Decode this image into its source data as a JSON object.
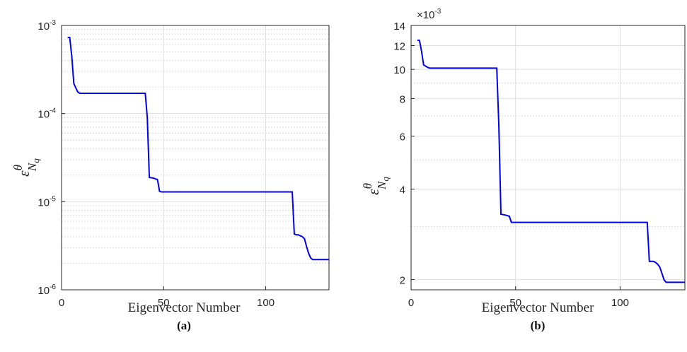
{
  "chart_data": [
    {
      "type": "line",
      "panel_label": "(a)",
      "xlabel": "Eigenvector Number",
      "ylabel": {
        "base": "ε",
        "sup": "θ",
        "sub": "N",
        "subsub": "q"
      },
      "yscale": "log",
      "xlim": [
        0,
        131
      ],
      "ylim": [
        1e-06,
        0.001
      ],
      "x_ticks": [
        "0",
        "50",
        "100"
      ],
      "y_ticks": [
        {
          "base": "10",
          "exp": "-6"
        },
        {
          "base": "10",
          "exp": "-5"
        },
        {
          "base": "10",
          "exp": "-4"
        },
        {
          "base": "10",
          "exp": "-3"
        }
      ],
      "grid": true,
      "color": "#0000ee",
      "series": [
        {
          "x": [
            3,
            4,
            5,
            6,
            7,
            8,
            9,
            10,
            41,
            42,
            43,
            45,
            47,
            48,
            49,
            113,
            114,
            115,
            116,
            117,
            118,
            119,
            120,
            121,
            122,
            123,
            124,
            125,
            131
          ],
          "y": [
            0.00073,
            0.00073,
            0.00045,
            0.00022,
            0.000195,
            0.000175,
            0.00017,
            0.00017,
            0.00017,
            9e-05,
            1.88e-05,
            1.85e-05,
            1.78e-05,
            1.31e-05,
            1.29e-05,
            1.29e-05,
            4.3e-06,
            4.2e-06,
            4.2e-06,
            4.1e-06,
            4e-06,
            3.8e-06,
            3.1e-06,
            2.6e-06,
            2.3e-06,
            2.2e-06,
            2.2e-06,
            2.2e-06,
            2.2e-06
          ]
        }
      ]
    },
    {
      "type": "line",
      "panel_label": "(b)",
      "xlabel": "Eigenvector Number",
      "ylabel": {
        "base": "ε",
        "sup": "θ",
        "sub": "N",
        "subsub": "q"
      },
      "yscale": "log",
      "multiplier": {
        "base": "×10",
        "exp": "-3"
      },
      "xlim": [
        0,
        131
      ],
      "ylim": [
        1.85,
        14
      ],
      "x_ticks": [
        "0",
        "50",
        "100"
      ],
      "y_ticks": [
        {
          "label": "2",
          "value": 2
        },
        {
          "label": "4",
          "value": 4
        },
        {
          "label": "6",
          "value": 6
        },
        {
          "label": "8",
          "value": 8
        },
        {
          "label": "10",
          "value": 10
        },
        {
          "label": "12",
          "value": 12
        },
        {
          "label": "14",
          "value": 14
        }
      ],
      "grid": true,
      "color": "#0000ee",
      "series": [
        {
          "x": [
            3,
            4,
            5,
            6,
            7,
            8,
            9,
            10,
            41,
            42,
            43,
            45,
            47,
            48,
            49,
            113,
            114,
            115,
            116,
            117,
            118,
            119,
            120,
            121,
            122,
            123,
            124,
            125,
            131
          ],
          "y": [
            12.5,
            12.5,
            11.5,
            10.35,
            10.25,
            10.15,
            10.1,
            10.1,
            10.1,
            6.5,
            3.3,
            3.28,
            3.25,
            3.1,
            3.1,
            3.1,
            2.3,
            2.3,
            2.3,
            2.28,
            2.25,
            2.2,
            2.1,
            2.0,
            1.96,
            1.96,
            1.96,
            1.96,
            1.96
          ]
        }
      ]
    }
  ]
}
